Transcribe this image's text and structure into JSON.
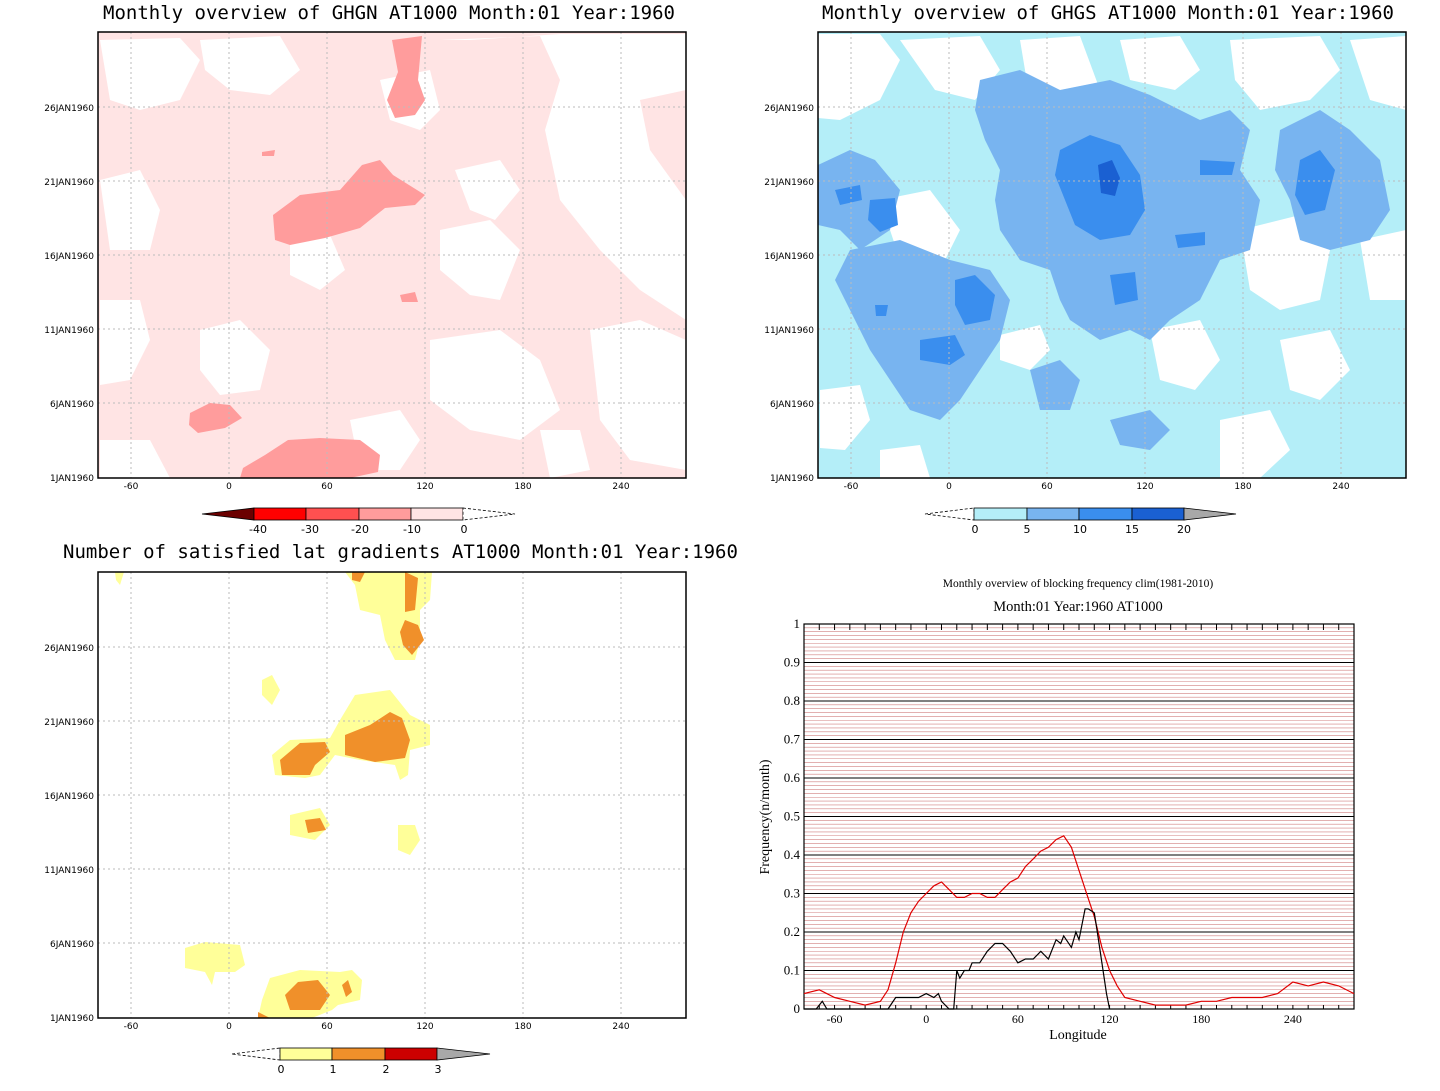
{
  "colors": {
    "pink1": "#ffe4e4",
    "pink2": "#ff9c9c",
    "red3": "#ff5050",
    "red4": "#ff0000",
    "red5": "#6b0000",
    "blue1": "#b4eef8",
    "blue2": "#78b4f0",
    "blue3": "#3a8eee",
    "blue4": "#1a60d2",
    "gray": "#a8a8a8",
    "yellow": "#ffff99",
    "orange": "#f0902a",
    "darkred": "#cc0000",
    "freq_red": "#e00000",
    "freq_black": "#000000",
    "grid_red": "#d08080"
  },
  "panels": {
    "ghgn": {
      "title": "Monthly overview of GHGN AT1000 Month:01 Year:1960",
      "colorbar_labels": [
        "-40",
        "-30",
        "-20",
        "-10",
        "0"
      ]
    },
    "ghgs": {
      "title": "Monthly overview of GHGS AT1000 Month:01 Year:1960",
      "colorbar_labels": [
        "0",
        "5",
        "10",
        "15",
        "20"
      ]
    },
    "latgrad": {
      "title": "Number of satisfied lat gradients AT1000 Month:01 Year:1960",
      "colorbar_labels": [
        "0",
        "1",
        "2",
        "3"
      ]
    }
  },
  "map_axes": {
    "x_ticks": [
      "-60",
      "0",
      "60",
      "120",
      "180",
      "240"
    ],
    "y_ticks": [
      "1JAN1960",
      "6JAN1960",
      "11JAN1960",
      "16JAN1960",
      "21JAN1960",
      "26JAN1960"
    ]
  },
  "chart_data": [
    {
      "type": "line",
      "title": "Monthly overview of blocking frequency clim(1981-2010)",
      "subtitle": "Month:01 Year:1960  AT1000",
      "xlabel": "Longitude",
      "ylabel": "Frequency(n/month)",
      "xlim": [
        -80,
        280
      ],
      "ylim": [
        0,
        1
      ],
      "x_ticks": [
        -60,
        0,
        60,
        120,
        180,
        240
      ],
      "y_ticks": [
        0,
        0.1,
        0.2,
        0.3,
        0.4,
        0.5,
        0.6,
        0.7,
        0.8,
        0.9,
        1
      ],
      "y_tick_labels": [
        "0",
        "0.1",
        "0.2",
        "0.3",
        "0.4",
        "0.5",
        "0.6",
        "0.7",
        "0.8",
        "0.9",
        "1"
      ],
      "x_tick_labels": [
        "-60",
        "0",
        "60",
        "120",
        "180",
        "240"
      ],
      "series": [
        {
          "color": "red",
          "x": [
            -80,
            -70,
            -60,
            -50,
            -40,
            -30,
            -25,
            -20,
            -15,
            -10,
            -5,
            0,
            5,
            10,
            15,
            20,
            25,
            30,
            35,
            40,
            45,
            50,
            55,
            60,
            65,
            70,
            75,
            80,
            85,
            90,
            95,
            100,
            105,
            110,
            115,
            120,
            125,
            130,
            140,
            150,
            160,
            170,
            180,
            190,
            200,
            210,
            220,
            230,
            240,
            250,
            260,
            270,
            280
          ],
          "y": [
            0.04,
            0.05,
            0.03,
            0.02,
            0.01,
            0.02,
            0.05,
            0.12,
            0.2,
            0.25,
            0.28,
            0.3,
            0.32,
            0.33,
            0.31,
            0.29,
            0.29,
            0.3,
            0.3,
            0.29,
            0.29,
            0.31,
            0.33,
            0.34,
            0.37,
            0.39,
            0.41,
            0.42,
            0.44,
            0.45,
            0.42,
            0.36,
            0.3,
            0.24,
            0.16,
            0.1,
            0.06,
            0.03,
            0.02,
            0.01,
            0.01,
            0.01,
            0.02,
            0.02,
            0.03,
            0.03,
            0.03,
            0.04,
            0.07,
            0.06,
            0.07,
            0.06,
            0.04
          ]
        },
        {
          "color": "black",
          "x": [
            -80,
            -72,
            -68,
            -65,
            -60,
            -40,
            -25,
            -20,
            -15,
            -10,
            -5,
            0,
            5,
            8,
            10,
            15,
            18,
            20,
            22,
            25,
            28,
            30,
            35,
            40,
            45,
            50,
            55,
            60,
            65,
            70,
            75,
            80,
            85,
            88,
            90,
            95,
            98,
            100,
            104,
            106,
            110,
            112,
            115,
            118,
            120
          ],
          "y": [
            0.0,
            0.0,
            0.02,
            0.0,
            0.0,
            0.0,
            0.0,
            0.03,
            0.03,
            0.03,
            0.03,
            0.04,
            0.03,
            0.04,
            0.02,
            0.0,
            0.0,
            0.1,
            0.08,
            0.1,
            0.1,
            0.12,
            0.12,
            0.15,
            0.17,
            0.17,
            0.15,
            0.12,
            0.13,
            0.13,
            0.15,
            0.13,
            0.18,
            0.17,
            0.19,
            0.16,
            0.2,
            0.18,
            0.26,
            0.26,
            0.25,
            0.2,
            0.12,
            0.04,
            0.0
          ]
        }
      ]
    }
  ]
}
